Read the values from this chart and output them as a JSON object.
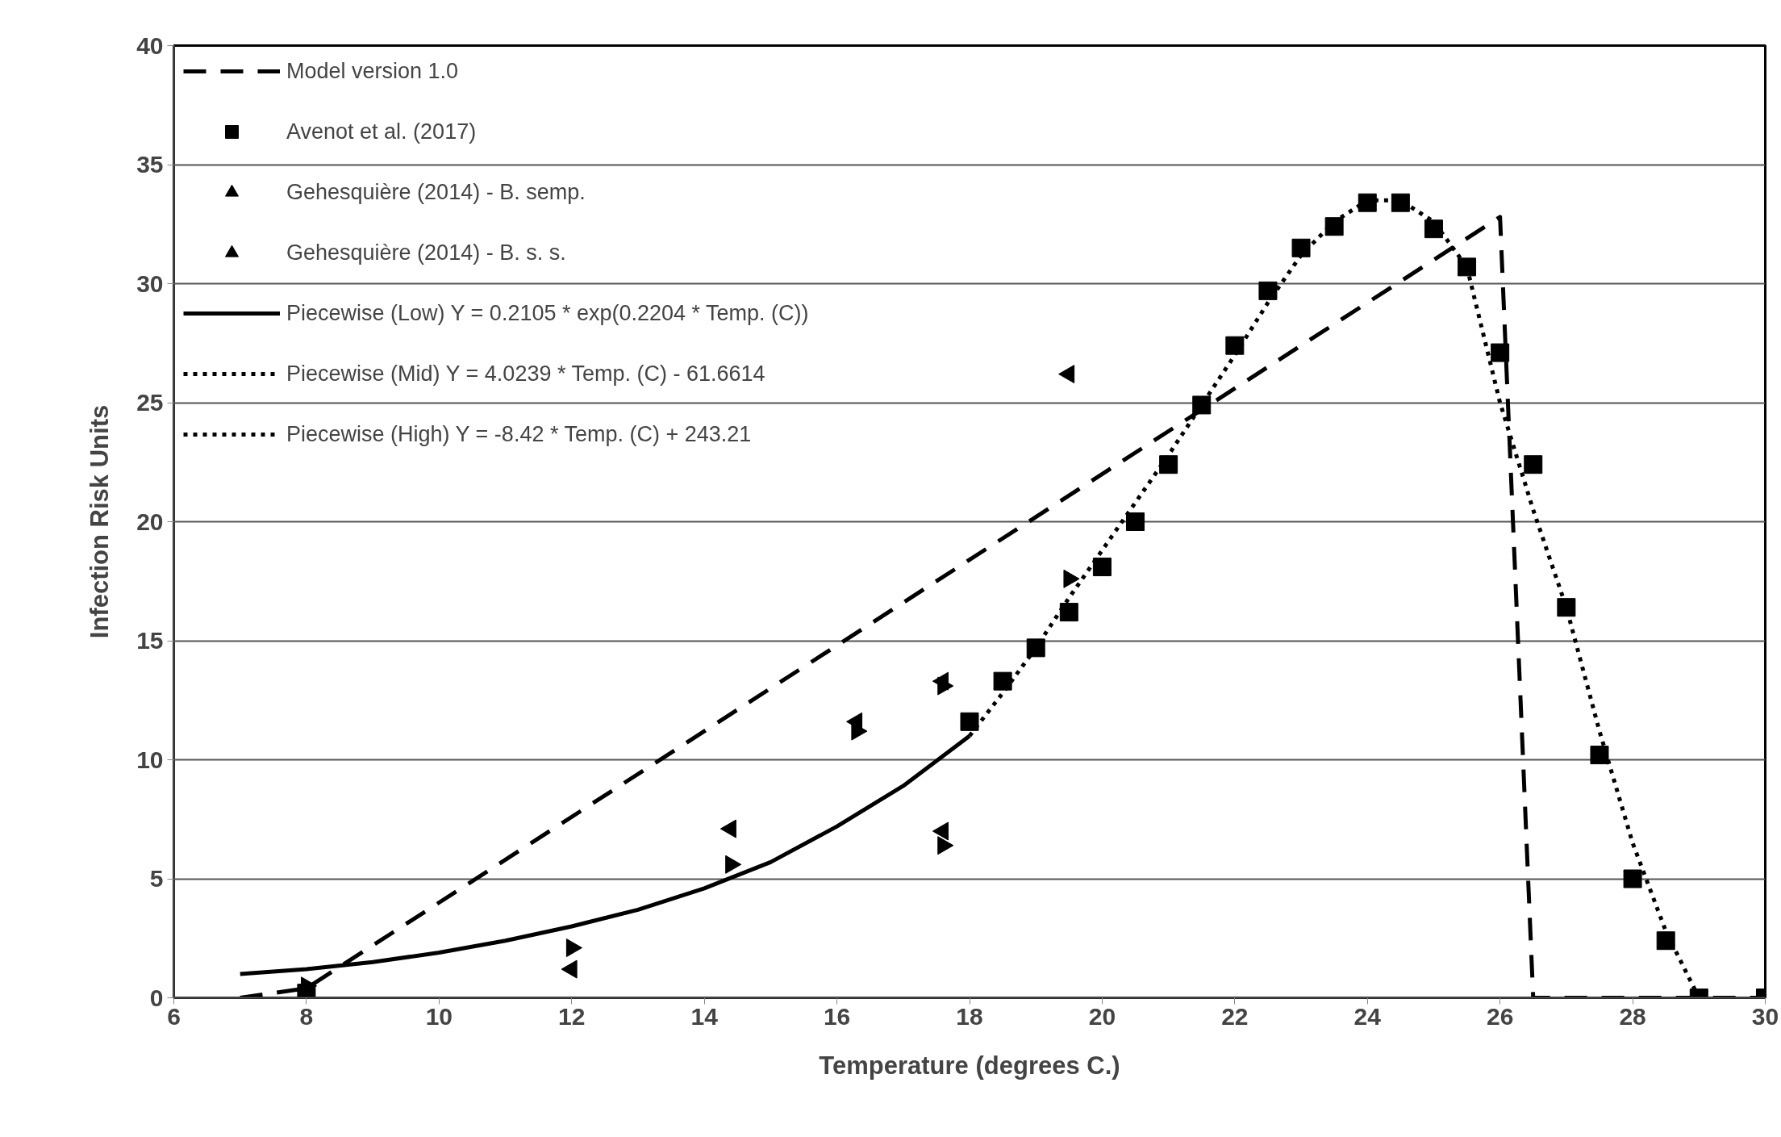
{
  "chart_data": {
    "type": "scatter",
    "xlabel": "Temperature (degrees C.)",
    "ylabel": "Infection Risk Units",
    "xlim": [
      6,
      30
    ],
    "ylim": [
      0,
      40
    ],
    "xticks": [
      6,
      8,
      10,
      12,
      14,
      16,
      18,
      20,
      22,
      24,
      26,
      28,
      30
    ],
    "yticks": [
      0,
      5,
      10,
      15,
      20,
      25,
      30,
      35,
      40
    ],
    "grid": "y",
    "legend": "top left",
    "series": [
      {
        "name": "Model version 1.0",
        "type": "line",
        "line_style": "dashed",
        "marker": "none",
        "color": "#000000",
        "x": [
          7,
          8,
          26,
          26.5,
          30
        ],
        "values": [
          0,
          0.4,
          32.8,
          0,
          0
        ]
      },
      {
        "name": "Avenot et al. (2017)",
        "marker": "square",
        "color": "#000000",
        "x": [
          8,
          18,
          18.5,
          19,
          19.5,
          20,
          20.5,
          21,
          21.5,
          22,
          22.5,
          23,
          23.5,
          24,
          24.5,
          25,
          25.5,
          26,
          26.5,
          27,
          27.5,
          28,
          28.5,
          29,
          30
        ],
        "values": [
          0.2,
          11.6,
          13.3,
          14.7,
          16.2,
          18.1,
          20.0,
          22.4,
          24.9,
          27.4,
          29.7,
          31.5,
          32.4,
          33.4,
          33.4,
          32.3,
          30.7,
          27.1,
          22.4,
          16.4,
          10.2,
          5.0,
          2.4,
          0,
          0
        ]
      },
      {
        "name": "Gehesquière (2014) - B. semp.",
        "marker": "triangle",
        "color": "#000000",
        "x": [
          8,
          12,
          14.4,
          16.3,
          17.6,
          17.6,
          19.5
        ],
        "values": [
          0.5,
          2.1,
          5.6,
          11.2,
          6.4,
          13.1,
          17.6
        ]
      },
      {
        "name": "Gehesquière (2014) - B. s. s.",
        "marker": "triangle",
        "color": "#000000",
        "x": [
          12,
          14.4,
          16.3,
          17.6,
          17.6,
          19.5
        ],
        "values": [
          1.2,
          7.1,
          11.6,
          7.0,
          13.3,
          26.2
        ]
      },
      {
        "name": "Piecewise (Low) Y = 0.2105 * exp(0.2204 * Temp. (C))",
        "type": "line",
        "line_style": "solid",
        "marker": "none",
        "color": "#000000",
        "x": [
          7,
          8,
          9,
          10,
          11,
          12,
          13,
          14,
          15,
          16,
          17,
          18
        ],
        "values": [
          1.0,
          1.2,
          1.5,
          1.9,
          2.4,
          3.0,
          3.7,
          4.6,
          5.7,
          7.2,
          8.9,
          11.0
        ]
      },
      {
        "name": "Piecewise (Mid) Y = 4.0239 * Temp. (C) - 61.6614",
        "type": "line",
        "line_style": "dotted",
        "marker": "none",
        "color": "#000000",
        "x": [
          18,
          18.5,
          19,
          19.5,
          20,
          20.5,
          21,
          21.5,
          22,
          22.5,
          23,
          23.5,
          24,
          24.5,
          25,
          25.5
        ],
        "values": [
          11.0,
          12.8,
          14.7,
          16.8,
          18.8,
          20.8,
          22.8,
          24.9,
          27.0,
          29.2,
          31.2,
          32.6,
          33.5,
          33.5,
          32.6,
          30.7
        ]
      },
      {
        "name": "Piecewise (High) Y = -8.42 * Temp. (C) + 243.21",
        "type": "line",
        "line_style": "dotted",
        "marker": "none",
        "color": "#000000",
        "x": [
          25.5,
          26,
          26.5,
          27,
          27.5,
          28,
          28.5,
          29
        ],
        "values": [
          30.7,
          25.0,
          20.5,
          16.4,
          11.2,
          6.5,
          2.8,
          0
        ]
      }
    ]
  }
}
